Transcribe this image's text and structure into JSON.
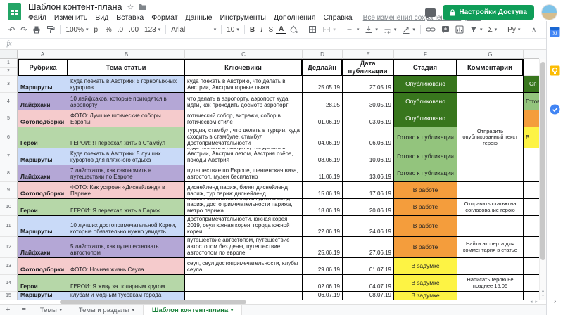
{
  "app": {
    "title": "Шаблон контент-плана",
    "menu": [
      "Файл",
      "Изменить",
      "Вид",
      "Вставка",
      "Формат",
      "Данные",
      "Инструменты",
      "Дополнения",
      "Справка"
    ],
    "save_status": "Все изменения сохранены на Диске",
    "share_button": "Настройки Доступа"
  },
  "toolbar": {
    "undo": "↶",
    "redo": "↷",
    "zoom": "100%",
    "currency": "р.",
    "percent": "%",
    "dec_decrease": ".0",
    "dec_increase": ".00",
    "num_format": "123",
    "font": "Arial",
    "font_size": "10",
    "bold": "B",
    "italic": "I",
    "strike": "S",
    "text_color": "A",
    "sigma": "Σ",
    "py": "Ру",
    "collapse": "∧",
    "dropdown": "▾"
  },
  "formula_bar": {
    "fx": "fx"
  },
  "grid": {
    "col_letters": [
      "A",
      "B",
      "C",
      "D",
      "E",
      "F",
      "G"
    ],
    "header_row_numbers": [
      "1",
      "2"
    ]
  },
  "table": {
    "headers": [
      "Рубрика",
      "Тема статьи",
      "Ключевики",
      "Дедлайн",
      "Дата публикации",
      "Стадия",
      "Комментарии"
    ],
    "rows": [
      {
        "n": "3",
        "rubric": "Маршруты",
        "rubric_color": "routes",
        "topic": "Куда поехать в Австрию: 5 горнолыжных курортов",
        "keywords": "куда поехать в Австрию, что делать в Австрии, Австрия горные лыжи",
        "deadline": "25.05.19",
        "pub_date": "27.05.19",
        "stage": "Опубликовано",
        "stage_type": "published",
        "comment": "",
        "extra_text": "Оп",
        "extra_type": "published"
      },
      {
        "n": "4",
        "rubric": "Лайфхаки",
        "rubric_color": "hacks",
        "topic": "10 лайфхаков, которые пригодятся в аэропорту",
        "keywords": "что делать в аэропорту, аэропорт куда идти, как проходить досмотр аэропорт",
        "deadline": "28.05",
        "pub_date": "30.05.19",
        "stage": "Опубликовано",
        "stage_type": "published",
        "comment": "",
        "extra_text": "Готов",
        "extra_type": "ready"
      },
      {
        "n": "5",
        "rubric": "Фотоподборки",
        "rubric_color": "photos",
        "topic": "ФОТО: Лучшие готические соборы Европы",
        "keywords": "готический собор, витражи, собор в готическом стиле",
        "deadline": "01.06.19",
        "pub_date": "03.06.19",
        "stage": "Опубликовано",
        "stage_type": "published",
        "comment": "",
        "extra_text": "",
        "extra_type": "inwork"
      },
      {
        "n": "6",
        "rubric": "Герои",
        "rubric_color": "heroes",
        "topic": "ГЕРОИ: Я переехал жить в Стамбул",
        "keywords": "турция, стамбул, что делать в турции, куда сходить в стамбуле, стамбул достопримечательности",
        "deadline": "04.06.19",
        "pub_date": "06.06.19",
        "stage": "Готово к публикации",
        "stage_type": "ready",
        "comment": "Отправить опубликованный текст герою",
        "extra_text": "В",
        "extra_type": "idea"
      },
      {
        "n": "7",
        "rubric": "Маршруты",
        "rubric_color": "routes",
        "topic": "Куда поехать в Австрию: 5 лучших курортов для пляжного отдыха",
        "keywords": "куда поехать в Австрию, что делать в Австрии, Австрия летом, Австрия озёра, походы Австрия",
        "deadline": "08.06.19",
        "pub_date": "10.06.19",
        "stage": "Готово к публикации",
        "stage_type": "ready",
        "comment": "",
        "extra_text": "",
        "extra_type": ""
      },
      {
        "n": "8",
        "rubric": "Лайфхаки",
        "rubric_color": "hacks",
        "topic": "7 лайфхаков, как сэкономить в путешествии по Европе",
        "keywords": "путешествие по Европе, шенгенская виза, автостоп, музеи бесплатно",
        "deadline": "11.06.19",
        "pub_date": "13.06.19",
        "stage": "Готово к публикации",
        "stage_type": "ready",
        "comment": "",
        "extra_text": "",
        "extra_type": ""
      },
      {
        "n": "9",
        "rubric": "Фотоподборки",
        "rubric_color": "photos",
        "topic": "ФОТО: Как устроен «Диснейлэнд» в Париже",
        "keywords": "диснейленд париж, билет диснейленд париж, тур париж диснейленд",
        "deadline": "15.06.19",
        "pub_date": "17.06.19",
        "stage": "В работе",
        "stage_type": "inwork",
        "comment": "",
        "extra_text": "",
        "extra_type": ""
      },
      {
        "n": "10",
        "rubric": "Герои",
        "rubric_color": "heroes",
        "topic": "ГЕРОИ: Я переехал жить в Париж",
        "keywords": "париж, бесплатный париж, диснейлэнд париж, достопримечательности парижа, метро парижа",
        "deadline": "18.06.19",
        "pub_date": "20.06.19",
        "stage": "В работе",
        "stage_type": "inwork",
        "comment": "Отправить статью на согласование герою",
        "extra_text": "",
        "extra_type": ""
      },
      {
        "n": "11",
        "rubric": "Маршруты",
        "rubric_color": "routes",
        "topic": "10 лучших достопримечательной Кореи, которые обязательно нужно увидеть",
        "keywords": "южная корея тур, сеул достопримечательности, корея достопримечательности, южная корея 2019, сеул южная корея, города южной кореи",
        "deadline": "22.06.19",
        "pub_date": "24.06.19",
        "stage": "В работе",
        "stage_type": "inwork",
        "comment": "",
        "extra_text": "",
        "extra_type": ""
      },
      {
        "n": "12",
        "rubric": "Лайфхаки",
        "rubric_color": "hacks",
        "topic": "5 лайфхаков, как путешествовать автостопом",
        "keywords": "путешествие автостопом, путешествие автостопом без денег, путешествие автостопом по европе",
        "deadline": "25.06.19",
        "pub_date": "27.06.19",
        "stage": "В работе",
        "stage_type": "inwork",
        "comment": "Найти эксперта для комментария в статье",
        "extra_text": "",
        "extra_type": ""
      },
      {
        "n": "13",
        "rubric": "Фотоподборки",
        "rubric_color": "photos",
        "topic": "ФОТО: Ночная жизнь Сеула",
        "keywords": "сеул, сеул достопримечательности, клубы сеула",
        "deadline": "29.06.19",
        "pub_date": "01.07.19",
        "stage": "В задумке",
        "stage_type": "idea",
        "comment": "",
        "extra_text": "",
        "extra_type": ""
      },
      {
        "n": "14",
        "rubric": "Герои",
        "rubric_color": "heroes",
        "topic": "ГЕРОИ: Я живу за полярным кругом",
        "keywords": "",
        "deadline": "02.06.19",
        "pub_date": "04.07.19",
        "stage": "В задумке",
        "stage_type": "idea",
        "comment": "Написать герою не позднее 15.06",
        "extra_text": "",
        "extra_type": ""
      },
      {
        "n": "15",
        "rubric": "Маршруты",
        "rubric_color": "routes",
        "topic": "Ночной Сеул: путеводитель по барам, клубам и модным тусовкам города",
        "keywords": "",
        "deadline": "06.07.19",
        "pub_date": "08.07.19",
        "stage": "В задумке",
        "stage_type": "idea",
        "comment": "",
        "extra_text": "",
        "extra_type": ""
      }
    ]
  },
  "colors": {
    "rubric": {
      "routes": "#c9daf8",
      "hacks": "#b4a7d6",
      "photos": "#f5cbcc",
      "heroes": "#b6d7a8"
    },
    "stage": {
      "published": "#38761d",
      "ready": "#93c47d",
      "inwork": "#f49d3c",
      "idea": "#fdf344"
    },
    "stage_text_published": "#ffffff",
    "accent_green": "#0f9d58",
    "active_tab_green": "#188038"
  },
  "tabs": {
    "items": [
      {
        "label": "Темы",
        "active": false
      },
      {
        "label": "Темы и разделы",
        "active": false
      },
      {
        "label": "Шаблон контент-плана",
        "active": true
      }
    ]
  },
  "icons": {
    "star": "☆",
    "add_sheet": "+",
    "all_sheets": "≡",
    "panel_collapse": "›",
    "calendar_day": "31",
    "tasks_check": "✓",
    "hscroll_left": "◂",
    "hscroll_right": "▸",
    "vscroll_up": "▴",
    "vscroll_down": "▾"
  }
}
